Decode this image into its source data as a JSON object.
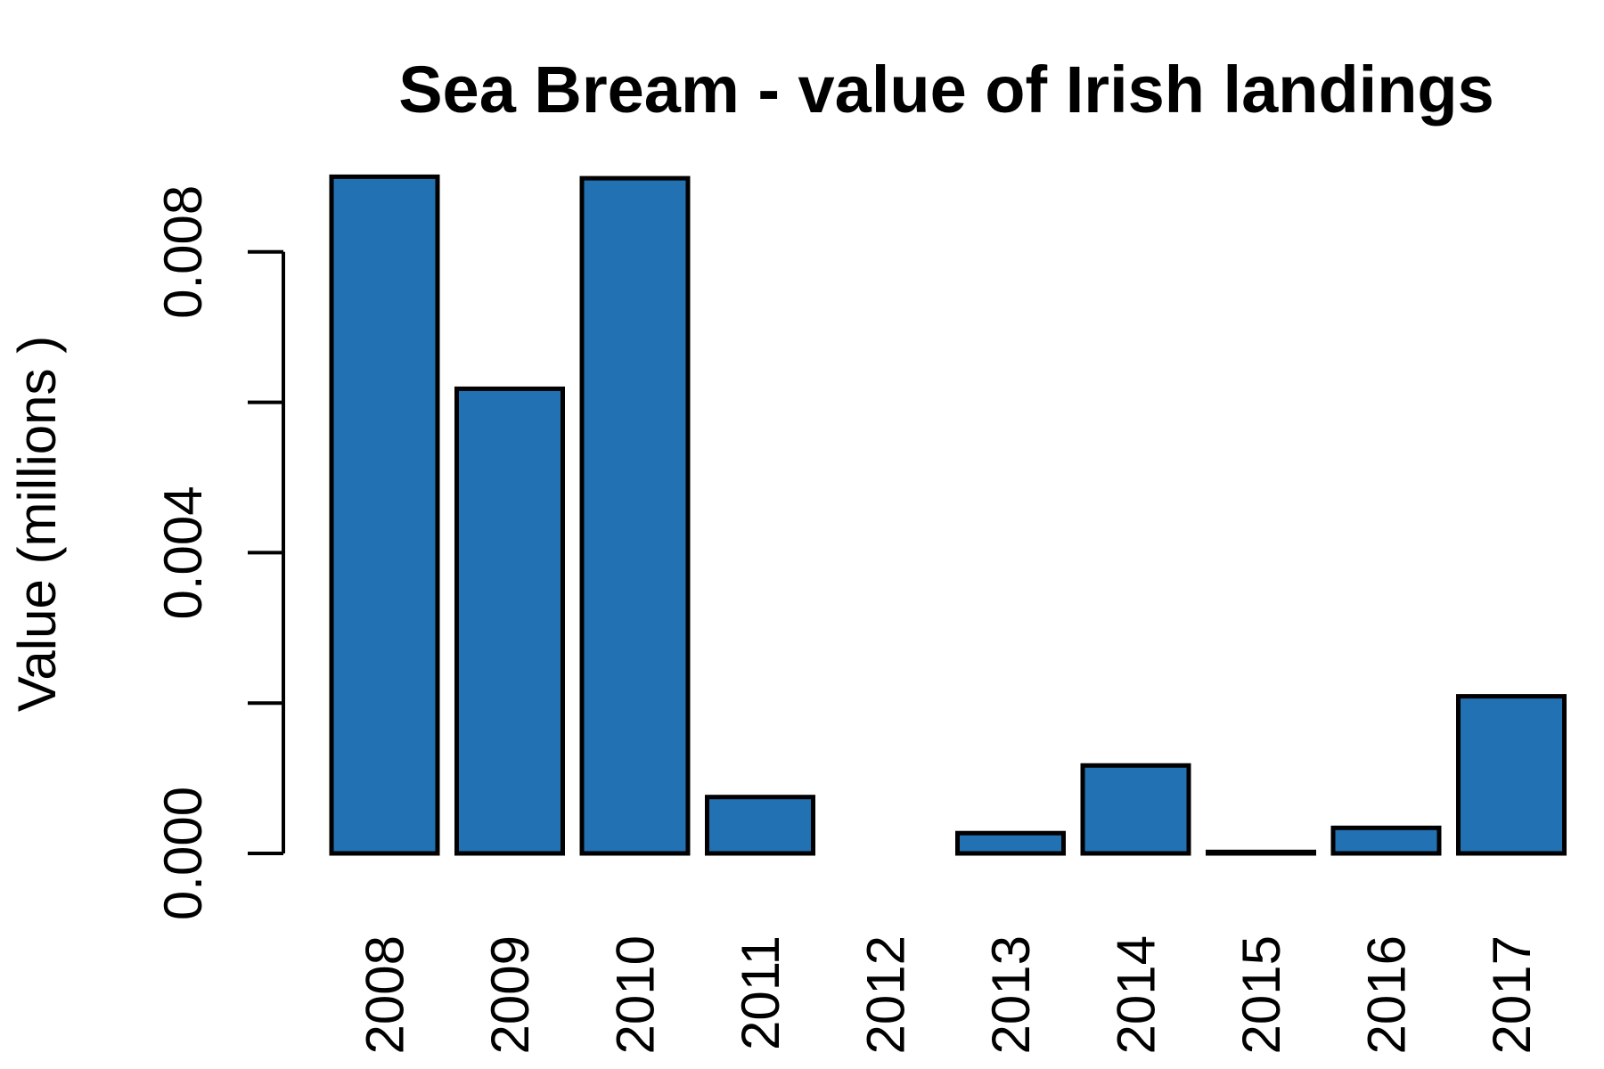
{
  "chart_data": {
    "type": "bar",
    "title": "Sea Bream - value of Irish landings",
    "xlabel": "",
    "ylabel": "Value (millions )",
    "categories": [
      "2008",
      "2009",
      "2010",
      "2011",
      "2012",
      "2013",
      "2014",
      "2015",
      "2016",
      "2017"
    ],
    "values": [
      0.009,
      0.00618,
      0.00898,
      0.00075,
      0.0,
      0.00027,
      0.00117,
      2e-05,
      0.00034,
      0.00209
    ],
    "ylim": [
      0,
      0.0096
    ],
    "yticks": [
      0.0,
      0.002,
      0.004,
      0.006,
      0.008
    ],
    "ytick_labels": [
      "0.000",
      "",
      "0.004",
      "",
      "0.008"
    ],
    "bar_color": "#2271B2",
    "grid": false,
    "legend": "none"
  }
}
